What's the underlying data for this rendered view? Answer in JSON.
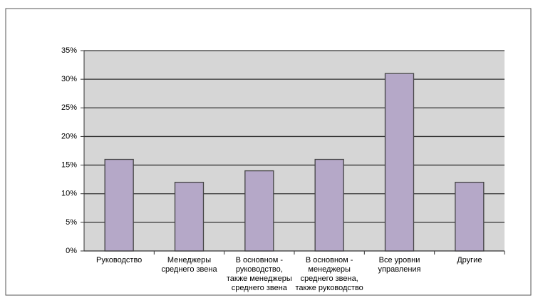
{
  "chart_data": {
    "type": "bar",
    "categories": [
      "Руководство",
      "Менеджеры\nсреднего звена",
      "В основном -\nруководство,\nтакже менеджеры\nсреднего звена",
      "В основном -\nменеджеры\nсреднего звена,\nтакже руководство",
      "Все уровни\nуправления",
      "Другие"
    ],
    "values": [
      16,
      12,
      14,
      16,
      31,
      12
    ],
    "color": "#b5a8c8",
    "ylim": [
      0,
      35
    ],
    "yticks": [
      {
        "value": 0,
        "label": "0%"
      },
      {
        "value": 5,
        "label": "5%"
      },
      {
        "value": 10,
        "label": "10%"
      },
      {
        "value": 15,
        "label": "15%"
      },
      {
        "value": 20,
        "label": "20%"
      },
      {
        "value": 25,
        "label": "25%"
      },
      {
        "value": 30,
        "label": "30%"
      },
      {
        "value": 35,
        "label": "35%"
      }
    ],
    "grid": true
  }
}
